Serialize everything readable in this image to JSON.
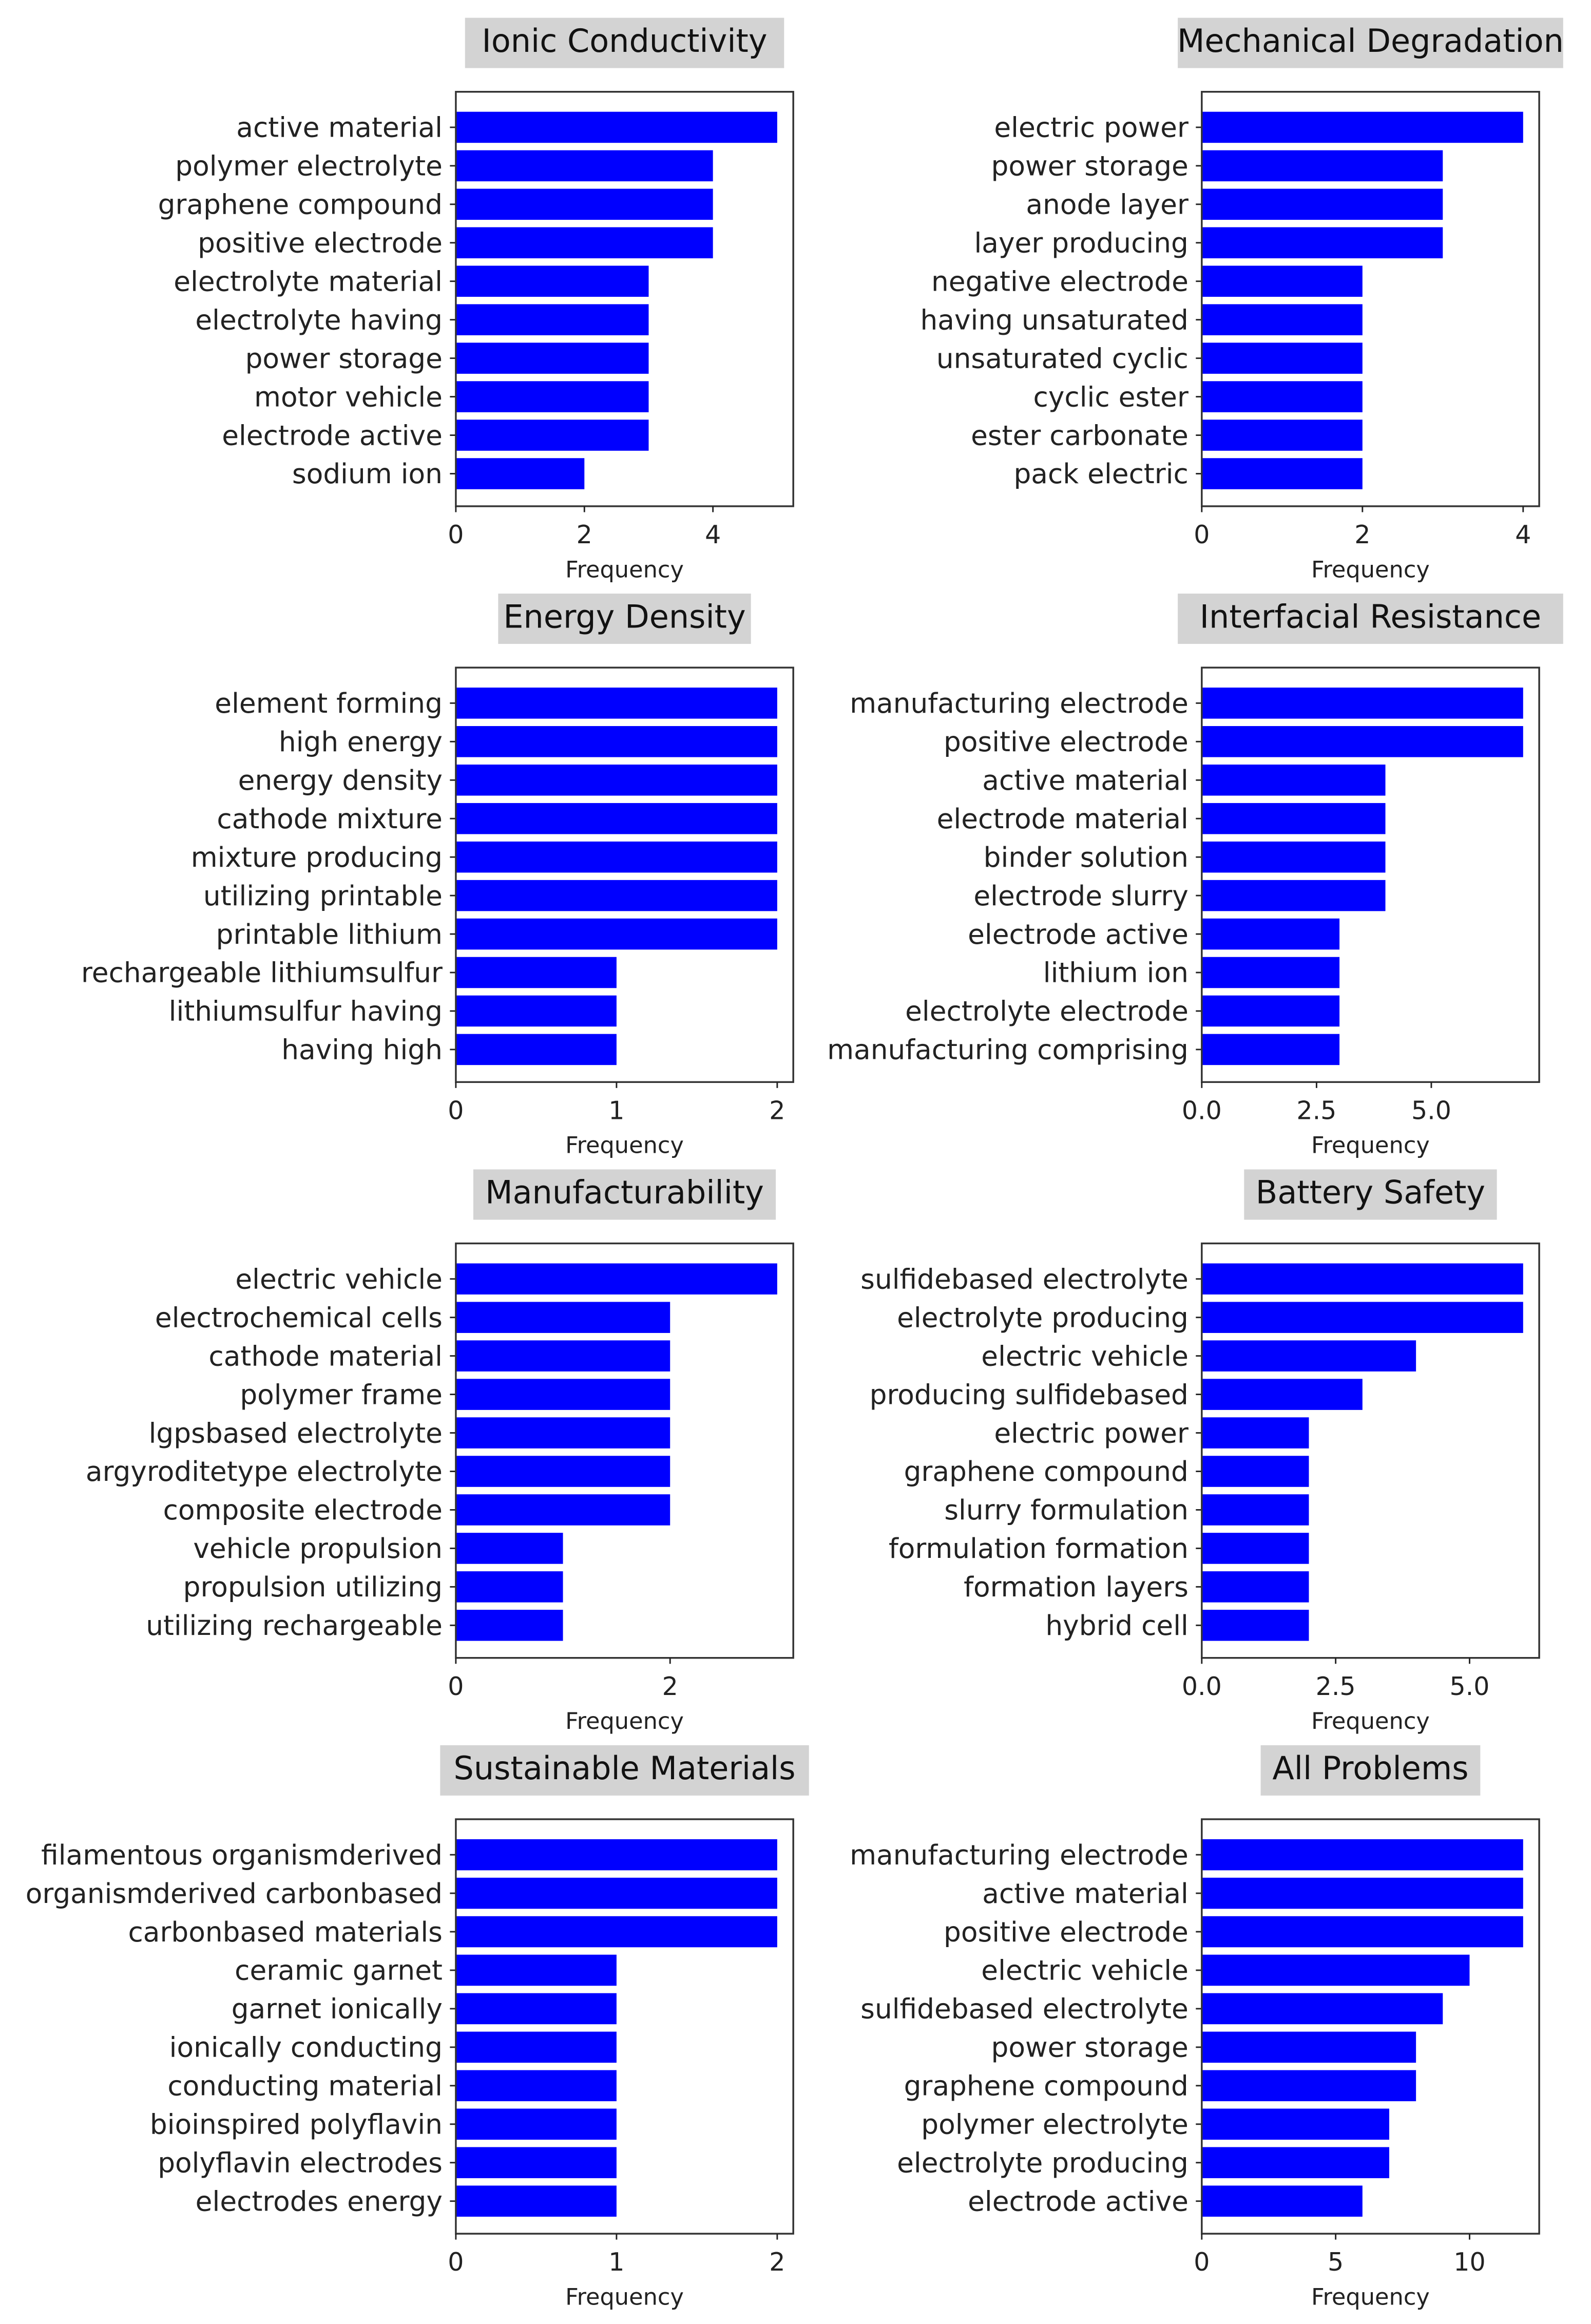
{
  "chart_data": [
    {
      "type": "bar",
      "orientation": "horizontal",
      "title": "Ionic Conductivity",
      "xlabel": "Frequency",
      "ylabel": "",
      "categories": [
        "active material",
        "polymer electrolyte",
        "graphene compound",
        "positive electrode",
        "electrolyte material",
        "electrolyte having",
        "power storage",
        "motor vehicle",
        "electrode active",
        "sodium ion"
      ],
      "values": [
        5,
        4,
        4,
        4,
        3,
        3,
        3,
        3,
        3,
        2
      ],
      "xlim": [
        0,
        5.25
      ],
      "xticks": [
        0,
        2,
        4
      ],
      "xtick_labels": [
        "0",
        "2",
        "4"
      ],
      "color": "#0000ff",
      "grid": false
    },
    {
      "type": "bar",
      "orientation": "horizontal",
      "title": "Mechanical Degradation",
      "xlabel": "Frequency",
      "ylabel": "",
      "categories": [
        "electric power",
        "power storage",
        "anode layer",
        "layer producing",
        "negative electrode",
        "having unsaturated",
        "unsaturated cyclic",
        "cyclic ester",
        "ester carbonate",
        "pack electric"
      ],
      "values": [
        4,
        3,
        3,
        3,
        2,
        2,
        2,
        2,
        2,
        2
      ],
      "xlim": [
        0,
        4.2
      ],
      "xticks": [
        0,
        2,
        4
      ],
      "xtick_labels": [
        "0",
        "2",
        "4"
      ],
      "color": "#0000ff",
      "grid": false
    },
    {
      "type": "bar",
      "orientation": "horizontal",
      "title": "Energy Density",
      "xlabel": "Frequency",
      "ylabel": "",
      "categories": [
        "element forming",
        "high energy",
        "energy density",
        "cathode mixture",
        "mixture producing",
        "utilizing printable",
        "printable lithium",
        "rechargeable lithiumsulfur",
        "lithiumsulfur having",
        "having high"
      ],
      "values": [
        2,
        2,
        2,
        2,
        2,
        2,
        2,
        1,
        1,
        1
      ],
      "xlim": [
        0,
        2.1
      ],
      "xticks": [
        0,
        1,
        2
      ],
      "xtick_labels": [
        "0",
        "1",
        "2"
      ],
      "color": "#0000ff",
      "grid": false
    },
    {
      "type": "bar",
      "orientation": "horizontal",
      "title": "Interfacial Resistance",
      "xlabel": "Frequency",
      "ylabel": "",
      "categories": [
        "manufacturing electrode",
        "positive electrode",
        "active material",
        "electrode material",
        "binder solution",
        "electrode slurry",
        "electrode active",
        "lithium ion",
        "electrolyte electrode",
        "manufacturing comprising"
      ],
      "values": [
        7,
        7,
        4,
        4,
        4,
        4,
        3,
        3,
        3,
        3
      ],
      "xlim": [
        0,
        7.35
      ],
      "xticks": [
        0,
        2.5,
        5
      ],
      "xtick_labels": [
        "0.0",
        "2.5",
        "5.0"
      ],
      "color": "#0000ff",
      "grid": false
    },
    {
      "type": "bar",
      "orientation": "horizontal",
      "title": "Manufacturability",
      "xlabel": "Frequency",
      "ylabel": "",
      "categories": [
        "electric vehicle",
        "electrochemical cells",
        "cathode material",
        "polymer frame",
        "lgpsbased electrolyte",
        "argyroditetype electrolyte",
        "composite electrode",
        "vehicle propulsion",
        "propulsion utilizing",
        "utilizing rechargeable"
      ],
      "values": [
        3,
        2,
        2,
        2,
        2,
        2,
        2,
        1,
        1,
        1
      ],
      "xlim": [
        0,
        3.15
      ],
      "xticks": [
        0,
        2
      ],
      "xtick_labels": [
        "0",
        "2"
      ],
      "color": "#0000ff",
      "grid": false
    },
    {
      "type": "bar",
      "orientation": "horizontal",
      "title": "Battery Safety",
      "xlabel": "Frequency",
      "ylabel": "",
      "categories": [
        "sulfidebased electrolyte",
        "electrolyte producing",
        "electric vehicle",
        "producing sulfidebased",
        "electric power",
        "graphene compound",
        "slurry formulation",
        "formulation formation",
        "formation layers",
        "hybrid cell"
      ],
      "values": [
        6,
        6,
        4,
        3,
        2,
        2,
        2,
        2,
        2,
        2
      ],
      "xlim": [
        0,
        6.3
      ],
      "xticks": [
        0,
        2.5,
        5
      ],
      "xtick_labels": [
        "0.0",
        "2.5",
        "5.0"
      ],
      "color": "#0000ff",
      "grid": false
    },
    {
      "type": "bar",
      "orientation": "horizontal",
      "title": "Sustainable Materials",
      "xlabel": "Frequency",
      "ylabel": "",
      "categories": [
        "filamentous organismderived",
        "organismderived carbonbased",
        "carbonbased materials",
        "ceramic garnet",
        "garnet ionically",
        "ionically conducting",
        "conducting material",
        "bioinspired polyflavin",
        "polyflavin electrodes",
        "electrodes energy"
      ],
      "values": [
        2,
        2,
        2,
        1,
        1,
        1,
        1,
        1,
        1,
        1
      ],
      "xlim": [
        0,
        2.1
      ],
      "xticks": [
        0,
        1,
        2
      ],
      "xtick_labels": [
        "0",
        "1",
        "2"
      ],
      "color": "#0000ff",
      "grid": false
    },
    {
      "type": "bar",
      "orientation": "horizontal",
      "title": "All Problems",
      "xlabel": "Frequency",
      "ylabel": "",
      "categories": [
        "manufacturing electrode",
        "active material",
        "positive electrode",
        "electric vehicle",
        "sulfidebased electrolyte",
        "power storage",
        "graphene compound",
        "polymer electrolyte",
        "electrolyte producing",
        "electrode active"
      ],
      "values": [
        12,
        12,
        12,
        10,
        9,
        8,
        8,
        7,
        7,
        6
      ],
      "xlim": [
        0,
        12.6
      ],
      "xticks": [
        0,
        5,
        10
      ],
      "xtick_labels": [
        "0",
        "5",
        "10"
      ],
      "color": "#0000ff",
      "grid": false
    }
  ]
}
